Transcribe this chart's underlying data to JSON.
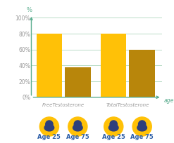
{
  "age25_values": [
    80,
    80
  ],
  "age75_values": [
    38,
    60
  ],
  "color_age25": "#FFC107",
  "color_age75": "#B8860B",
  "bar_width": 0.28,
  "group_centers": [
    0.35,
    1.05
  ],
  "ylim": [
    0,
    108
  ],
  "yticks": [
    0,
    20,
    40,
    60,
    80,
    100
  ],
  "yticklabels": [
    "0%",
    "20%",
    "40%",
    "60%",
    "80%",
    "100%"
  ],
  "axis_color": "#5BAD8F",
  "grid_color": "#9ecfb0",
  "bg_color": "#ffffff",
  "tick_label_color": "#999999",
  "group_label_color": "#999999",
  "age_label_color": "#2d5fa8",
  "age_labels": [
    "Age 25",
    "Age 75",
    "Age 25",
    "Age 75"
  ],
  "group_labels": [
    "FreeTestosterone",
    "TotalTestosterone"
  ],
  "tick_fontsize": 5.5,
  "group_label_fontsize": 5.0,
  "age_label_fontsize": 6.0,
  "icon_color": "#FFC107",
  "icon_person_color": "#2d3f7c"
}
